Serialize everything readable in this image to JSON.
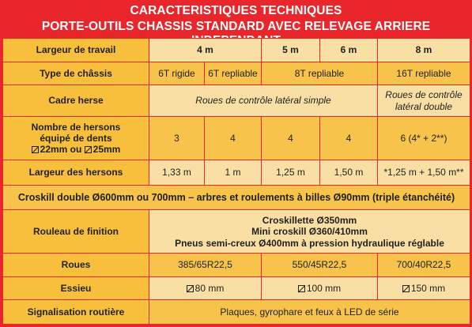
{
  "title": {
    "line1": "CARACTERISTIQUES TECHNIQUES",
    "line2": "PORTE-OUTILS CHASSIS STANDARD AVEC RELEVAGE ARRIERE INDEPENDANT"
  },
  "rows": {
    "largeur_travail": {
      "label": "Largeur de travail",
      "v4": "4 m",
      "v5": "5 m",
      "v6": "6 m",
      "v8": "8 m"
    },
    "type_chassis": {
      "label": "Type de châssis",
      "a": "6T rigide",
      "b": "6T repliable",
      "c": "8T repliable",
      "d": "16T repliable"
    },
    "cadre_herse": {
      "label": "Cadre herse",
      "a": "Roues de contrôle latéral simple",
      "b": "Roues de contrôle latéral double"
    },
    "nombre_hersons": {
      "label1": "Nombre de hersons",
      "label2": "équipé de dents",
      "label3a": "22mm ou ",
      "label3b": "25mm",
      "a": "3",
      "b": "4",
      "c": "4",
      "d": "4",
      "e": "6 (4* + 2**)"
    },
    "largeur_hersons": {
      "label": "Largeur des hersons",
      "a": "1,33 m",
      "b": "1 m",
      "c": "1,25 m",
      "d": "1,50 m",
      "e": "*1,25 m + 1,50 m**"
    },
    "croskill": {
      "text": "Croskill double Ø600mm ou 700mm – arbres et roulements à billes Ø90mm (triple étanchéité)"
    },
    "rouleau_finition": {
      "label": "Rouleau de finition",
      "l1": "Croskillette Ø350mm",
      "l2": "Mini croskill Ø360/410mm",
      "l3": "Pneus semi-creux Ø400mm  à pression hydraulique réglable"
    },
    "roues": {
      "label": "Roues",
      "a": "385/65R22,5",
      "b": "550/45R22,5",
      "c": "700/40R22,5"
    },
    "essieu": {
      "label": "Essieu",
      "a": "80 mm",
      "b": "100 mm",
      "c": "150 mm"
    },
    "signalisation": {
      "label": "Signalisation routière",
      "value": "Plaques, gyrophare et feux à LED de série"
    }
  }
}
